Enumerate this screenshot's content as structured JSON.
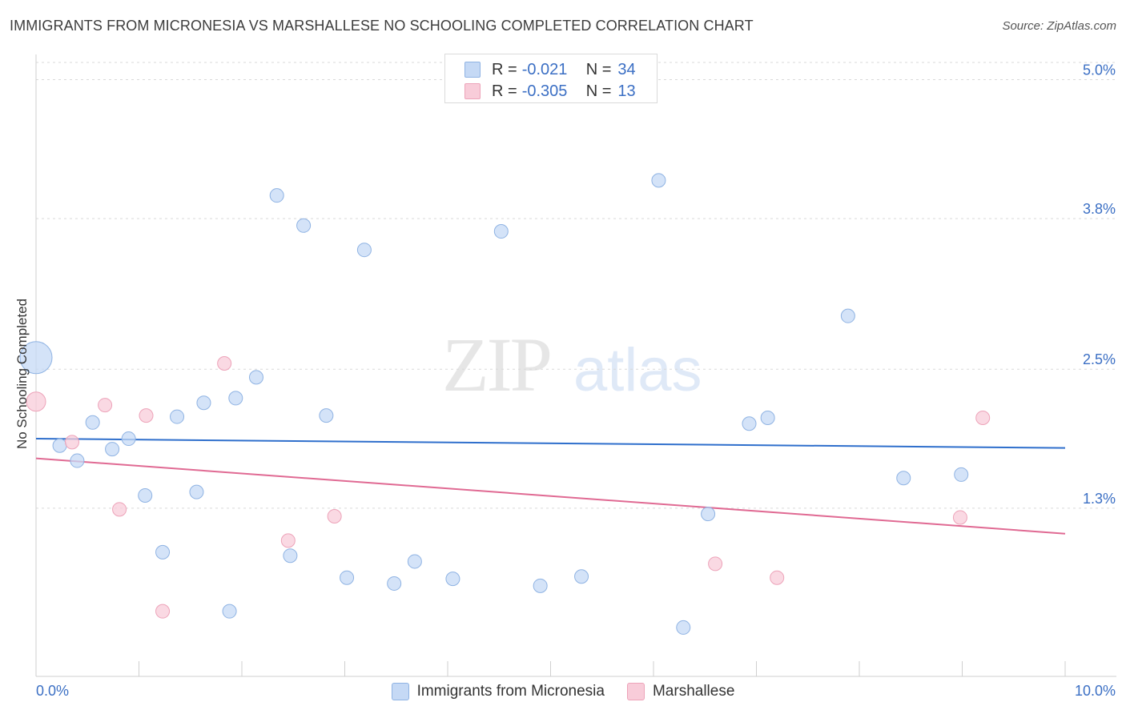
{
  "title": "IMMIGRANTS FROM MICRONESIA VS MARSHALLESE NO SCHOOLING COMPLETED CORRELATION CHART",
  "source": "Source: ZipAtlas.com",
  "watermark": {
    "part1": "ZIP",
    "part2": "atlas"
  },
  "colors": {
    "blue_fill": "#c5d9f5",
    "blue_stroke": "#8fb3e3",
    "blue_line": "#2f6fcc",
    "pink_fill": "#f8ccd9",
    "pink_stroke": "#eda3b9",
    "pink_line": "#e06a93",
    "value_text": "#3b6fc4"
  },
  "legend_top": [
    {
      "r_label": "R =",
      "r_value": "-0.021",
      "n_label": "N =",
      "n_value": "34"
    },
    {
      "r_label": "R =",
      "r_value": "-0.305",
      "n_label": "N =",
      "n_value": "13"
    }
  ],
  "chart_data": {
    "type": "scatter",
    "title": "IMMIGRANTS FROM MICRONESIA VS MARSHALLESE NO SCHOOLING COMPLETED CORRELATION CHART",
    "xlabel": "",
    "ylabel": "No Schooling Completed",
    "xlim": [
      0,
      10
    ],
    "ylim": [
      0,
      5.1
    ],
    "x_tick_labels": [
      "0.0%",
      "10.0%"
    ],
    "y_ticks": [
      {
        "value": 1.3,
        "label": "1.3%"
      },
      {
        "value": 2.5,
        "label": "2.5%"
      },
      {
        "value": 3.8,
        "label": "3.8%"
      },
      {
        "value": 5.0,
        "label": "5.0%"
      }
    ],
    "grid": true,
    "legend_position": "bottom",
    "series": [
      {
        "name": "Immigrants from Micronesia",
        "color": "blue",
        "trend": {
          "x": [
            0,
            10
          ],
          "y": [
            1.9,
            1.82
          ]
        },
        "points": [
          {
            "x": 0.0,
            "y": 2.6,
            "size": "large"
          },
          {
            "x": 0.23,
            "y": 1.84
          },
          {
            "x": 0.4,
            "y": 1.71
          },
          {
            "x": 0.55,
            "y": 2.04
          },
          {
            "x": 0.74,
            "y": 1.81
          },
          {
            "x": 0.9,
            "y": 1.9
          },
          {
            "x": 1.06,
            "y": 1.41
          },
          {
            "x": 1.23,
            "y": 0.92
          },
          {
            "x": 1.37,
            "y": 2.09
          },
          {
            "x": 1.56,
            "y": 1.44
          },
          {
            "x": 1.63,
            "y": 2.21
          },
          {
            "x": 1.88,
            "y": 0.41
          },
          {
            "x": 1.94,
            "y": 2.25
          },
          {
            "x": 2.14,
            "y": 2.43
          },
          {
            "x": 2.34,
            "y": 4.0
          },
          {
            "x": 2.47,
            "y": 0.89
          },
          {
            "x": 2.6,
            "y": 3.74
          },
          {
            "x": 2.82,
            "y": 2.1
          },
          {
            "x": 3.02,
            "y": 0.7
          },
          {
            "x": 3.19,
            "y": 3.53
          },
          {
            "x": 3.48,
            "y": 0.65
          },
          {
            "x": 3.68,
            "y": 0.84
          },
          {
            "x": 4.05,
            "y": 0.69
          },
          {
            "x": 4.52,
            "y": 3.69
          },
          {
            "x": 4.9,
            "y": 0.63
          },
          {
            "x": 5.3,
            "y": 0.71
          },
          {
            "x": 6.05,
            "y": 4.13
          },
          {
            "x": 6.29,
            "y": 0.27
          },
          {
            "x": 6.53,
            "y": 1.25
          },
          {
            "x": 6.93,
            "y": 2.03
          },
          {
            "x": 7.11,
            "y": 2.08
          },
          {
            "x": 7.89,
            "y": 2.96
          },
          {
            "x": 8.43,
            "y": 1.56
          },
          {
            "x": 8.99,
            "y": 1.59
          }
        ]
      },
      {
        "name": "Marshallese",
        "color": "pink",
        "trend": {
          "x": [
            0,
            10
          ],
          "y": [
            1.73,
            1.08
          ]
        },
        "points": [
          {
            "x": 0.0,
            "y": 2.22,
            "size": "medium"
          },
          {
            "x": 0.35,
            "y": 1.87
          },
          {
            "x": 0.67,
            "y": 2.19
          },
          {
            "x": 0.81,
            "y": 1.29
          },
          {
            "x": 1.07,
            "y": 2.1
          },
          {
            "x": 1.23,
            "y": 0.41
          },
          {
            "x": 1.83,
            "y": 2.55
          },
          {
            "x": 2.45,
            "y": 1.02
          },
          {
            "x": 2.9,
            "y": 1.23
          },
          {
            "x": 6.6,
            "y": 0.82
          },
          {
            "x": 7.2,
            "y": 0.7
          },
          {
            "x": 8.98,
            "y": 1.22
          },
          {
            "x": 9.2,
            "y": 2.08
          }
        ]
      }
    ]
  },
  "legend_bottom": [
    "Immigrants from Micronesia",
    "Marshallese"
  ]
}
